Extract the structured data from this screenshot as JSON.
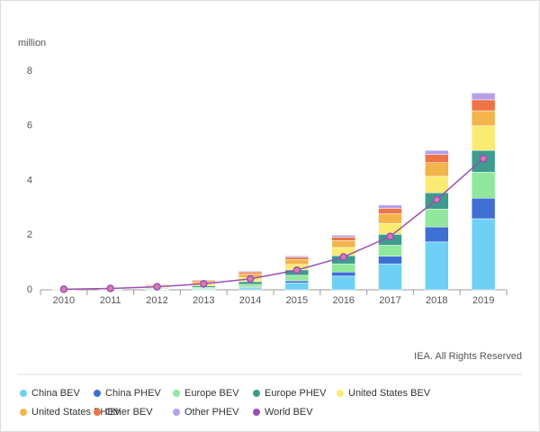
{
  "chart_data": {
    "type": "bar",
    "stacked": true,
    "grid": false,
    "y_label": "million",
    "source": "IEA. All Rights Reserved",
    "categories": [
      "2010",
      "2011",
      "2012",
      "2013",
      "2014",
      "2015",
      "2016",
      "2017",
      "2018",
      "2019"
    ],
    "ylim": [
      0,
      8
    ],
    "yticks": [
      0,
      2,
      4,
      6,
      8
    ],
    "series": [
      {
        "name": "China BEV",
        "color": "#6dd0f4",
        "values": [
          0.005,
          0.01,
          0.02,
          0.03,
          0.07,
          0.25,
          0.5,
          0.95,
          1.75,
          2.6
        ]
      },
      {
        "name": "China PHEV",
        "color": "#3e6fd2",
        "values": [
          0,
          0,
          0.005,
          0.01,
          0.03,
          0.08,
          0.15,
          0.28,
          0.55,
          0.75
        ]
      },
      {
        "name": "Europe BEV",
        "color": "#8fe89b",
        "values": [
          0.005,
          0.015,
          0.03,
          0.05,
          0.1,
          0.2,
          0.3,
          0.4,
          0.65,
          0.95
        ]
      },
      {
        "name": "Europe PHEV",
        "color": "#3d9c8e",
        "values": [
          0,
          0.005,
          0.02,
          0.05,
          0.1,
          0.2,
          0.3,
          0.4,
          0.6,
          0.8
        ]
      },
      {
        "name": "United States BEV",
        "color": "#fbeb72",
        "values": [
          0.005,
          0.015,
          0.04,
          0.08,
          0.15,
          0.2,
          0.3,
          0.4,
          0.6,
          0.9
        ]
      },
      {
        "name": "United States PHEV",
        "color": "#f3b44b",
        "values": [
          0,
          0.01,
          0.04,
          0.08,
          0.13,
          0.18,
          0.25,
          0.35,
          0.5,
          0.55
        ]
      },
      {
        "name": "Other BEV",
        "color": "#ee7447",
        "values": [
          0.005,
          0.01,
          0.03,
          0.05,
          0.07,
          0.08,
          0.12,
          0.2,
          0.3,
          0.4
        ]
      },
      {
        "name": "Other PHEV",
        "color": "#b5a0ea",
        "values": [
          0,
          0,
          0.01,
          0.02,
          0.03,
          0.05,
          0.08,
          0.12,
          0.15,
          0.25
        ]
      },
      {
        "name": "World BEV",
        "type": "line",
        "color": "#9a4fb3",
        "values": [
          0.02,
          0.05,
          0.11,
          0.22,
          0.4,
          0.72,
          1.2,
          1.95,
          3.3,
          4.8
        ]
      }
    ]
  }
}
